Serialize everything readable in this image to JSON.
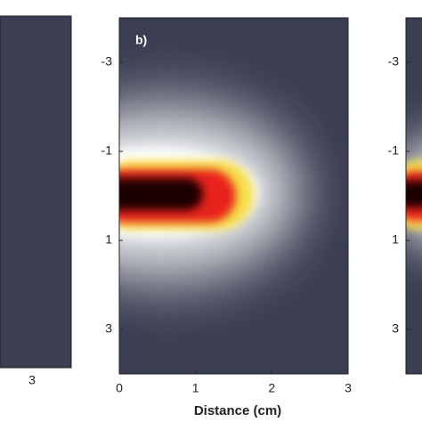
{
  "chart_data": [
    {
      "type": "heatmap",
      "xticks": [
        3
      ]
    },
    {
      "type": "heatmap",
      "title": "b)",
      "xlabel": "Distance (cm)",
      "xlim": [
        0,
        3
      ],
      "ylim": [
        -4,
        4
      ],
      "xticks": [
        0,
        1,
        2,
        3
      ],
      "yticks": [
        -3,
        -1,
        1,
        3
      ]
    },
    {
      "type": "heatmap",
      "ylim": [
        -4,
        4
      ],
      "yticks": [
        -3,
        -1,
        1,
        3
      ]
    }
  ]
}
